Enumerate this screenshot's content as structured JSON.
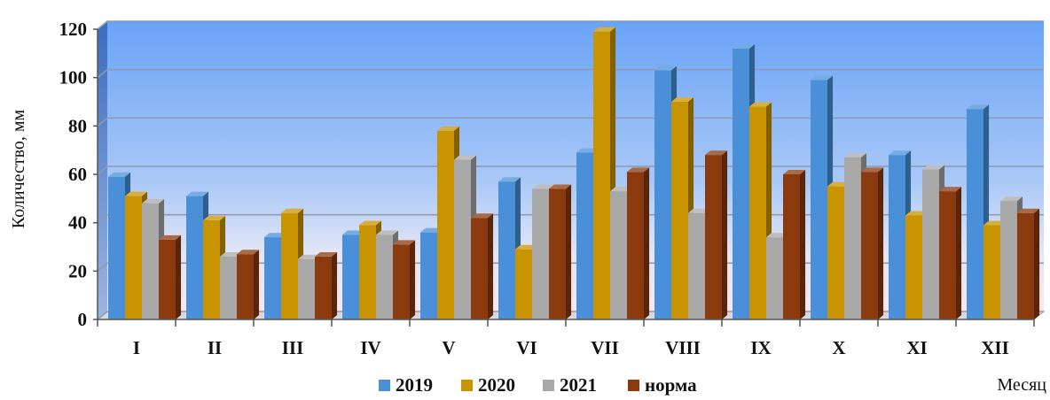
{
  "chart_data": {
    "type": "bar",
    "xlabel": "Месяц",
    "ylabel": "Количество, мм",
    "ylim": [
      0,
      120
    ],
    "yticks": [
      0,
      20,
      40,
      60,
      80,
      100,
      120
    ],
    "grid": true,
    "legend_position": "bottom",
    "categories": [
      "I",
      "II",
      "III",
      "IV",
      "V",
      "VI",
      "VII",
      "VIII",
      "IX",
      "X",
      "XI",
      "XII"
    ],
    "series": [
      {
        "name": "2019",
        "color": "#4a90d9",
        "values": [
          59,
          51,
          34,
          35,
          36,
          57,
          69,
          103,
          112,
          99,
          68,
          87
        ]
      },
      {
        "name": "2020",
        "color": "#c89400",
        "values": [
          51,
          41,
          44,
          39,
          78,
          29,
          119,
          90,
          88,
          55,
          43,
          39
        ]
      },
      {
        "name": "2021",
        "color": "#a8a8a8",
        "values": [
          48,
          26,
          25,
          35,
          66,
          54,
          53,
          44,
          34,
          67,
          62,
          49
        ]
      },
      {
        "name": "норма",
        "color": "#8b3a0e",
        "values": [
          33,
          27,
          26,
          31,
          42,
          54,
          61,
          68,
          60,
          61,
          53,
          44
        ]
      }
    ]
  }
}
